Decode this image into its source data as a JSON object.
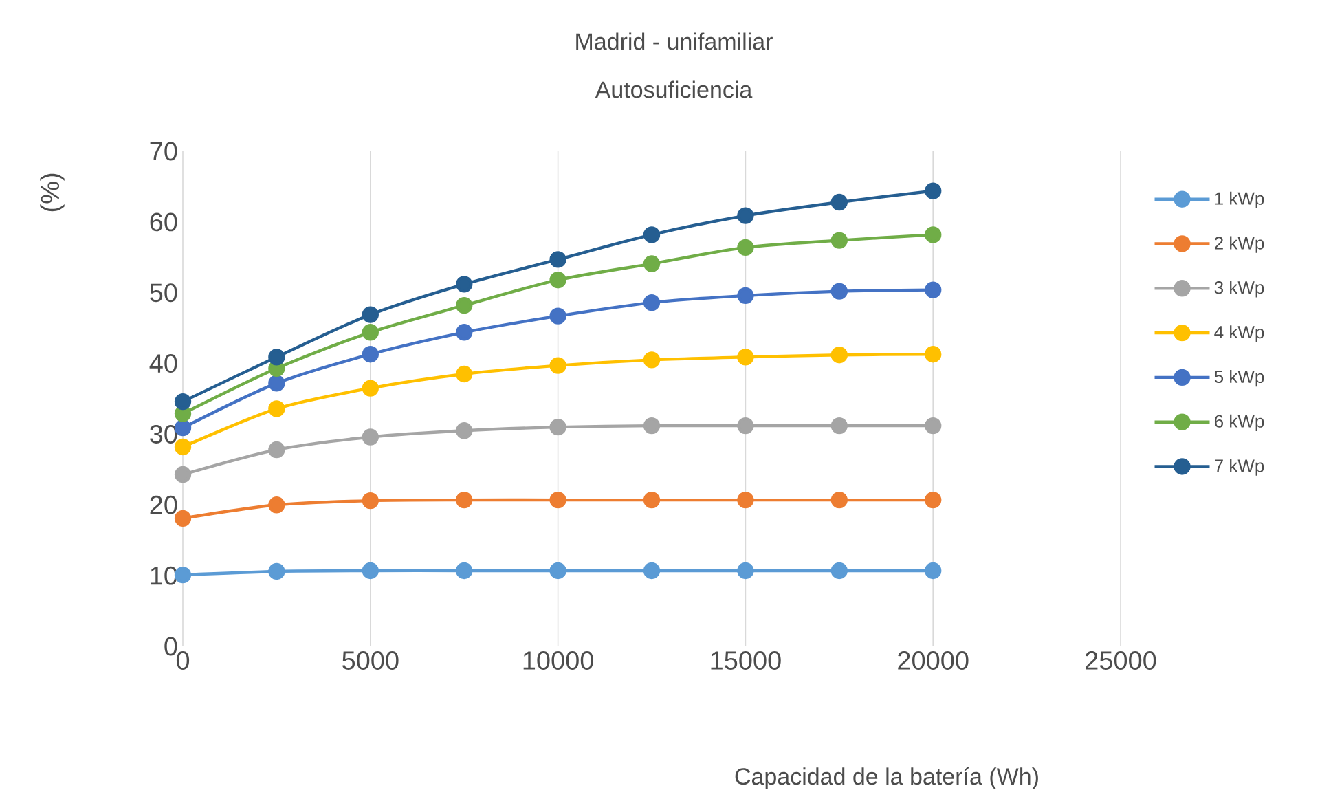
{
  "chart_data": {
    "type": "line",
    "title": "Madrid - unifamiliar",
    "subtitle": "Autosuficiencia",
    "xlabel": "Capacidad de la batería (Wh)",
    "ylabel": "(%)",
    "x": [
      0,
      2500,
      5000,
      7500,
      10000,
      12500,
      15000,
      17500,
      20000
    ],
    "series": [
      {
        "name": "1 kWp",
        "color": "#5b9bd5",
        "values": [
          10.1,
          10.6,
          10.7,
          10.7,
          10.7,
          10.7,
          10.7,
          10.7,
          10.7
        ]
      },
      {
        "name": "2 kWp",
        "color": "#ed7d31",
        "values": [
          18.1,
          20.0,
          20.6,
          20.7,
          20.7,
          20.7,
          20.7,
          20.7,
          20.7
        ]
      },
      {
        "name": "3 kWp",
        "color": "#a5a5a5",
        "values": [
          24.3,
          27.8,
          29.6,
          30.5,
          31.0,
          31.2,
          31.2,
          31.2,
          31.2
        ]
      },
      {
        "name": "4 kWp",
        "color": "#ffc000",
        "values": [
          28.2,
          33.6,
          36.5,
          38.5,
          39.7,
          40.5,
          40.9,
          41.2,
          41.3
        ]
      },
      {
        "name": "5 kWp",
        "color": "#4472c4",
        "values": [
          30.9,
          37.2,
          41.3,
          44.4,
          46.7,
          48.6,
          49.6,
          50.2,
          50.4
        ]
      },
      {
        "name": "6 kWp",
        "color": "#70ad47",
        "values": [
          32.9,
          39.3,
          44.4,
          48.2,
          51.8,
          54.1,
          56.4,
          57.4,
          58.2
        ]
      },
      {
        "name": "7 kWp",
        "color": "#255e91",
        "values": [
          34.6,
          40.9,
          46.9,
          51.2,
          54.7,
          58.2,
          60.9,
          62.8,
          64.4
        ]
      }
    ],
    "xlim": [
      0,
      25000
    ],
    "xticks": [
      0,
      5000,
      10000,
      15000,
      20000,
      25000
    ],
    "ylim": [
      0,
      70
    ],
    "yticks": [
      0,
      10,
      20,
      30,
      40,
      50,
      60,
      70
    ],
    "grid": "x",
    "legend": "right",
    "marker": "circle",
    "line_style": "solid"
  }
}
